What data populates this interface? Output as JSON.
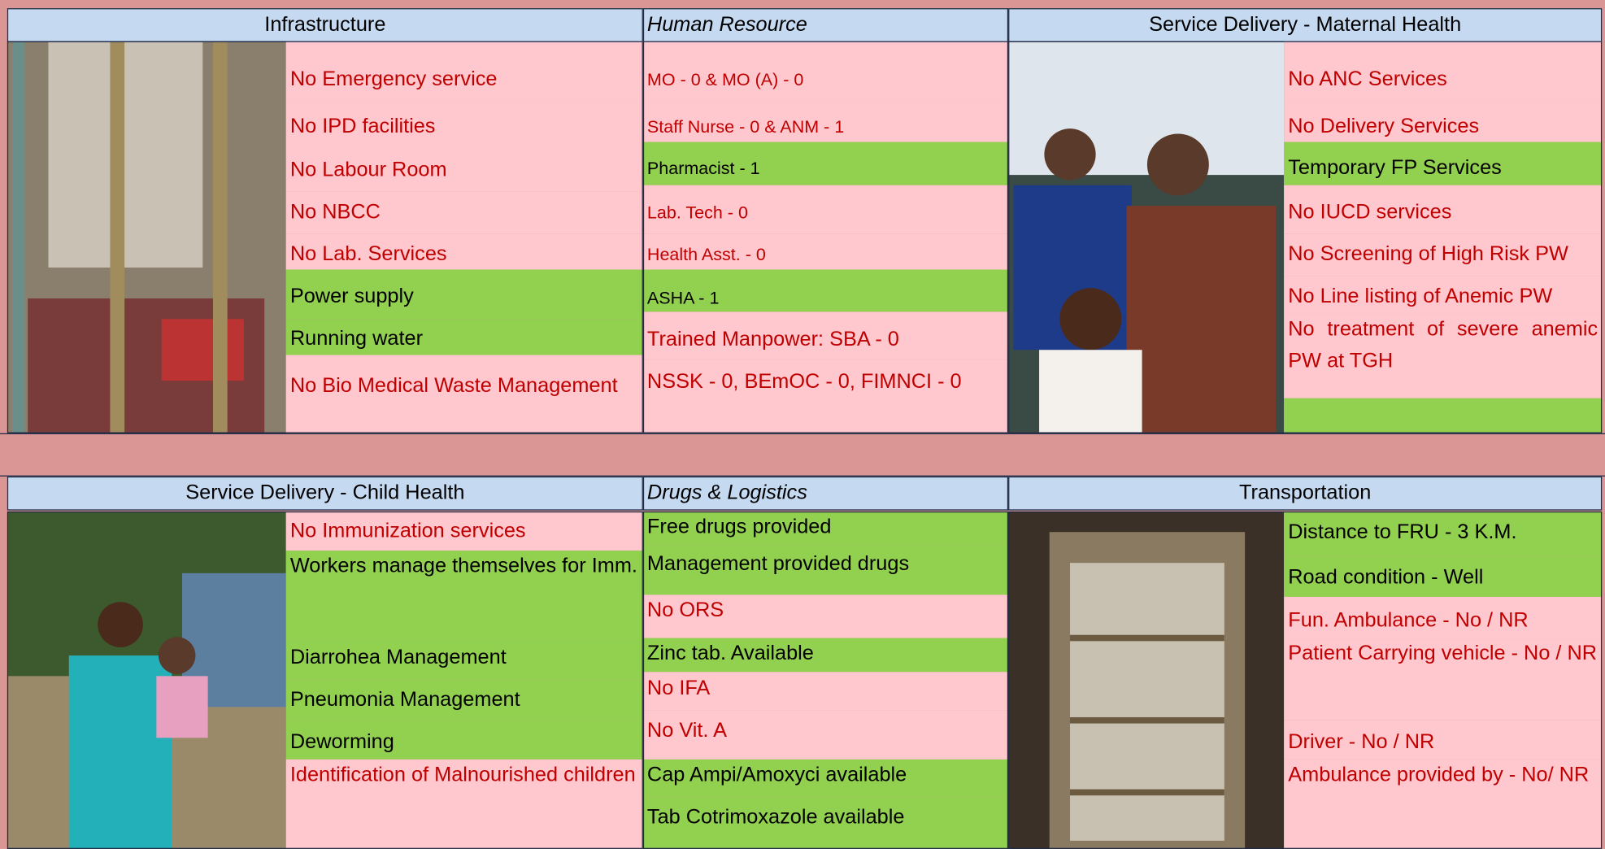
{
  "panels": [
    {
      "title": "Infrastructure",
      "items": [
        "No Emergency service",
        " No IPD facilities",
        " No Labour Room",
        "No NBCC",
        "No Lab. Services",
        "Power supply",
        "Running water",
        "No Bio Medical Waste Management"
      ]
    },
    {
      "title": "Human Resource",
      "items": [
        "MO - 0 & MO (A) - 0",
        "Staff Nurse - 0 & ANM - 1",
        "Pharmacist - 1",
        "Lab. Tech - 0",
        "Health Asst. - 0",
        "ASHA - 1",
        "Trained Manpower: SBA  - 0",
        "NSSK  - 0, BEmOC  - 0, FIMNCI  - 0"
      ]
    },
    {
      "title": "Service Delivery - Maternal Health",
      "items": [
        "No ANC Services",
        "No Delivery Services",
        "Temporary FP Services",
        "No IUCD services",
        "No Screening of High Risk PW",
        "No Line listing of Anemic PW",
        "No treatment of severe anemic PW at TGH"
      ]
    },
    {
      "title": "Service Delivery - Child Health",
      "items": [
        "No Immunization services",
        "Workers manage themselves for Imm.",
        "Diarrohea Management",
        "Pneumonia Management",
        "Deworming",
        "Identification of Malnourished children"
      ]
    },
    {
      "title": "Drugs & Logistics",
      "items": [
        "Free drugs provided",
        "Management provided drugs",
        "No ORS",
        "Zinc tab. Available",
        "No IFA",
        "No Vit. A",
        "Cap Ampi/Amoxyci available",
        "Tab Cotrimoxazole available"
      ]
    },
    {
      "title": "Transportation",
      "items": [
        "Distance to FRU - 3 K.M.",
        "Road condition - Well",
        "Fun. Ambulance - No / NR",
        "Patient Carrying vehicle - No / NR",
        "Driver - No / NR",
        "Ambulance provided by - No/ NR"
      ]
    }
  ]
}
